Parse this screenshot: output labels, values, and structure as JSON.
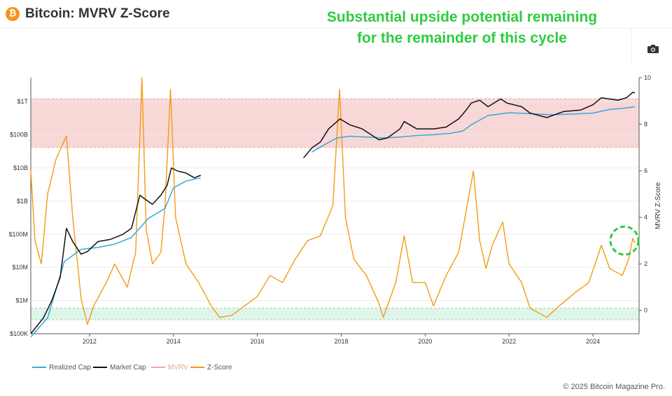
{
  "header": {
    "logo_letter": "₿",
    "title": "Bitcoin: MVRV Z-Score",
    "headline_line1": "Substantial upside potential remaining",
    "headline_line2": "for the remainder of this cycle"
  },
  "toolbar": {
    "camera_icon": "camera-icon"
  },
  "footer": {
    "copyright": "© 2025 Bitcoin Magazine Pro."
  },
  "colors": {
    "realized_cap": "#3aa8d8",
    "market_cap": "#111111",
    "mvrv": "#f4a3a3",
    "z_score": "#f39c12",
    "headline": "#2ecc40",
    "red_band": "#f8d7d7",
    "green_band": "#dff5ea",
    "annotation_circle": "#2ecc40"
  },
  "chart_data": {
    "type": "line",
    "title": "Bitcoin: MVRV Z-Score",
    "xlabel": "",
    "ylabel_left": "",
    "ylabel_right": "MVRV Z-Score",
    "x_range": [
      2010.6,
      2025.1
    ],
    "x_ticks": [
      "2012",
      "2014",
      "2016",
      "2018",
      "2020",
      "2022",
      "2024"
    ],
    "x_tick_values": [
      2012,
      2014,
      2016,
      2018,
      2020,
      2022,
      2024
    ],
    "y_left_scale": "log",
    "y_left_ticks": [
      "$100K",
      "$1M",
      "$10M",
      "$100M",
      "$1B",
      "$10B",
      "$100B",
      "$1T"
    ],
    "y_left_tick_values": [
      100000,
      1000000,
      10000000,
      100000000,
      1000000000,
      10000000000,
      100000000000,
      1000000000000
    ],
    "y_right_range": [
      -1,
      10
    ],
    "y_right_ticks": [
      "0",
      "2",
      "4",
      "6",
      "8",
      "10"
    ],
    "y_right_tick_values": [
      0,
      2,
      4,
      6,
      8,
      10
    ],
    "bands": [
      {
        "name": "red-zone",
        "axis": "right",
        "from": 7,
        "to": 9.1
      },
      {
        "name": "green-zone",
        "axis": "right",
        "from": -0.4,
        "to": 0.1
      }
    ],
    "legend": [
      "Realized Cap",
      "Market Cap",
      "MVRV",
      "Z-Score"
    ],
    "legend_position": "bottom-left",
    "series": [
      {
        "name": "Market Cap",
        "axis": "left",
        "x": [
          2010.6,
          2010.9,
          2011.1,
          2011.3,
          2011.45,
          2011.6,
          2011.8,
          2011.95,
          2012.2,
          2012.5,
          2012.8,
          2013.0,
          2013.2,
          2013.3,
          2013.5,
          2013.7,
          2013.85,
          2013.95,
          2014.1,
          2014.3,
          2014.5,
          2014.65,
          2017.1,
          2017.3,
          2017.5,
          2017.7,
          2017.9,
          2017.97,
          2018.2,
          2018.5,
          2018.9,
          2019.1,
          2019.4,
          2019.5,
          2019.8,
          2020.2,
          2020.5,
          2020.8,
          2020.95,
          2021.1,
          2021.3,
          2021.5,
          2021.8,
          2021.95,
          2022.3,
          2022.5,
          2022.9,
          2023.3,
          2023.7,
          2024.0,
          2024.2,
          2024.6,
          2024.8,
          2024.95,
          2025.0
        ],
        "values": [
          100000,
          300000,
          1000000,
          5000000,
          150000000,
          60000000,
          25000000,
          30000000,
          60000000,
          70000000,
          100000000,
          150000000,
          1500000000,
          1200000000,
          800000000,
          1500000000,
          3000000000,
          10000000000,
          8000000000,
          7000000000,
          5000000000,
          6000000000,
          20000000000,
          40000000000,
          60000000000,
          150000000000,
          250000000000,
          300000000000,
          200000000000,
          150000000000,
          70000000000,
          80000000000,
          150000000000,
          250000000000,
          150000000000,
          150000000000,
          170000000000,
          300000000000,
          500000000000,
          900000000000,
          1100000000000,
          700000000000,
          1200000000000,
          900000000000,
          700000000000,
          450000000000,
          330000000000,
          500000000000,
          550000000000,
          800000000000,
          1300000000000,
          1100000000000,
          1300000000000,
          1900000000000,
          1800000000000
        ]
      },
      {
        "name": "Realized Cap",
        "axis": "left",
        "x": [
          2010.6,
          2011.0,
          2011.4,
          2011.8,
          2012.2,
          2012.6,
          2013.0,
          2013.4,
          2013.8,
          2014.0,
          2014.3,
          2014.65,
          2017.3,
          2017.6,
          2017.9,
          2018.2,
          2018.6,
          2019.0,
          2019.4,
          2019.8,
          2020.2,
          2020.6,
          2020.9,
          2021.1,
          2021.5,
          2022.0,
          2022.5,
          2023.0,
          2023.5,
          2024.0,
          2024.4,
          2024.8,
          2025.0
        ],
        "values": [
          80000,
          300000,
          15000000,
          35000000,
          40000000,
          50000000,
          80000000,
          300000000,
          600000000,
          2500000000,
          4000000000,
          5000000000,
          30000000000,
          50000000000,
          80000000000,
          90000000000,
          85000000000,
          80000000000,
          85000000000,
          95000000000,
          100000000000,
          110000000000,
          130000000000,
          200000000000,
          380000000000,
          460000000000,
          430000000000,
          400000000000,
          420000000000,
          450000000000,
          580000000000,
          640000000000,
          700000000000
        ]
      },
      {
        "name": "Z-Score",
        "axis": "right",
        "x": [
          2010.6,
          2010.7,
          2010.85,
          2011.0,
          2011.2,
          2011.45,
          2011.6,
          2011.8,
          2011.95,
          2012.1,
          2012.4,
          2012.6,
          2012.9,
          2013.1,
          2013.25,
          2013.35,
          2013.5,
          2013.7,
          2013.8,
          2013.93,
          2014.05,
          2014.3,
          2014.6,
          2014.9,
          2015.1,
          2015.4,
          2015.7,
          2016.0,
          2016.3,
          2016.6,
          2016.9,
          2017.2,
          2017.5,
          2017.8,
          2017.96,
          2018.1,
          2018.3,
          2018.6,
          2018.9,
          2019.0,
          2019.3,
          2019.5,
          2019.7,
          2020.0,
          2020.2,
          2020.5,
          2020.8,
          2021.0,
          2021.15,
          2021.3,
          2021.45,
          2021.6,
          2021.85,
          2022.0,
          2022.3,
          2022.5,
          2022.9,
          2023.2,
          2023.6,
          2023.9,
          2024.2,
          2024.4,
          2024.7,
          2024.85,
          2024.95,
          2025.0
        ],
        "values": [
          6.0,
          3.0,
          2.0,
          5.0,
          6.5,
          7.5,
          4.0,
          0.5,
          -0.6,
          0.2,
          1.2,
          2.0,
          1.0,
          2.5,
          10.0,
          3.5,
          2.0,
          2.5,
          4.5,
          9.5,
          4.0,
          2.0,
          1.2,
          0.2,
          -0.3,
          -0.2,
          0.2,
          0.6,
          1.5,
          1.2,
          2.2,
          3.0,
          3.2,
          4.5,
          9.5,
          4.0,
          2.2,
          1.5,
          0.3,
          -0.3,
          1.2,
          3.2,
          1.2,
          1.2,
          0.2,
          1.5,
          2.5,
          4.5,
          6.0,
          3.0,
          1.8,
          2.8,
          3.8,
          2.0,
          1.2,
          0.1,
          -0.3,
          0.2,
          0.8,
          1.2,
          2.8,
          1.8,
          1.5,
          2.2,
          3.1,
          2.9
        ]
      }
    ],
    "annotations": [
      {
        "type": "dashed-circle",
        "x": 2024.75,
        "y": 3.0
      }
    ]
  }
}
